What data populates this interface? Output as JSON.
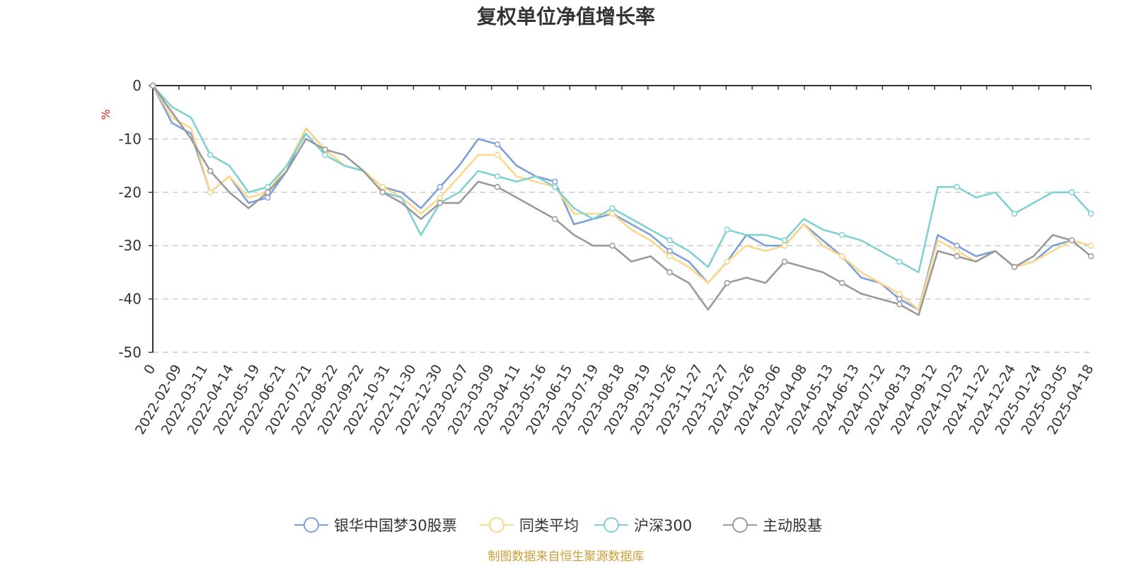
{
  "chart_data": {
    "type": "line",
    "title": "复权单位净值增长率",
    "y_unit": "%",
    "ylim": [
      -50,
      0
    ],
    "y_ticks": [
      0,
      -10,
      -20,
      -30,
      -40,
      -50
    ],
    "x_tick_labels": [
      "0",
      "2022-02-09",
      "2022-03-11",
      "2022-04-14",
      "2022-05-19",
      "2022-06-21",
      "2022-07-21",
      "2022-08-22",
      "2022-09-22",
      "2022-10-31",
      "2022-11-30",
      "2022-12-30",
      "2023-02-07",
      "2023-03-09",
      "2023-04-11",
      "2023-05-16",
      "2023-06-15",
      "2023-07-19",
      "2023-08-18",
      "2023-09-19",
      "2023-10-26",
      "2023-11-27",
      "2023-12-27",
      "2024-01-26",
      "2024-03-06",
      "2024-04-08",
      "2024-05-13",
      "2024-06-13",
      "2024-07-12",
      "2024-08-13",
      "2024-09-12",
      "2024-10-23",
      "2024-11-22",
      "2024-12-24",
      "2025-01-24",
      "2025-03-05",
      "2025-04-18"
    ],
    "grid": true,
    "legend_position": "bottom",
    "series": [
      {
        "name": "银华中国梦30股票",
        "color": "#7f9fd8",
        "values": [
          0,
          -7,
          -9,
          -20,
          -17,
          -22,
          -21,
          -16,
          -8,
          -12,
          -15,
          -16,
          -19,
          -20,
          -23,
          -19,
          -15,
          -10,
          -11,
          -15,
          -17,
          -18,
          -26,
          -25,
          -24,
          -26,
          -28,
          -31,
          -33,
          -37,
          -33,
          -28,
          -30,
          -30,
          -26,
          -29,
          -32,
          -36,
          -37,
          -40,
          -42,
          -28,
          -30,
          -32,
          -31,
          -34,
          -33,
          -30,
          -29,
          -30
        ]
      },
      {
        "name": "同类平均",
        "color": "#fbd88a",
        "values": [
          0,
          -6,
          -8,
          -20,
          -17,
          -21,
          -20,
          -15,
          -8,
          -12,
          -15,
          -16,
          -19,
          -21,
          -24,
          -21,
          -17,
          -13,
          -13,
          -17,
          -18,
          -19,
          -24,
          -24,
          -24,
          -27,
          -29,
          -32,
          -34,
          -37,
          -33,
          -30,
          -31,
          -30,
          -26,
          -30,
          -32,
          -35,
          -37,
          -39,
          -42,
          -29,
          -31,
          -33,
          -31,
          -34,
          -33,
          -31,
          -29,
          -30
        ]
      },
      {
        "name": "沪深300",
        "color": "#7fd1d4",
        "values": [
          0,
          -4,
          -6,
          -13,
          -15,
          -20,
          -19,
          -15,
          -9,
          -13,
          -15,
          -16,
          -20,
          -21,
          -28,
          -22,
          -20,
          -16,
          -17,
          -18,
          -17,
          -19,
          -23,
          -25,
          -23,
          -25,
          -27,
          -29,
          -31,
          -34,
          -27,
          -28,
          -28,
          -29,
          -25,
          -27,
          -28,
          -29,
          -31,
          -33,
          -35,
          -19,
          -19,
          -21,
          -20,
          -24,
          -22,
          -20,
          -20,
          -24
        ]
      },
      {
        "name": "主动股基",
        "color": "#9a9a9a",
        "values": [
          0,
          -5,
          -10,
          -16,
          -20,
          -23,
          -20,
          -16,
          -10,
          -12,
          -13,
          -16,
          -20,
          -22,
          -25,
          -22,
          -22,
          -18,
          -19,
          -21,
          -23,
          -25,
          -28,
          -30,
          -30,
          -33,
          -32,
          -35,
          -37,
          -42,
          -37,
          -36,
          -37,
          -33,
          -34,
          -35,
          -37,
          -39,
          -40,
          -41,
          -43,
          -31,
          -32,
          -33,
          -31,
          -34,
          -32,
          -28,
          -29,
          -32
        ]
      }
    ],
    "source_note": "制图数据来自恒生聚源数据库",
    "source_color": "#c9a13a",
    "unit_color": "#e02020"
  }
}
